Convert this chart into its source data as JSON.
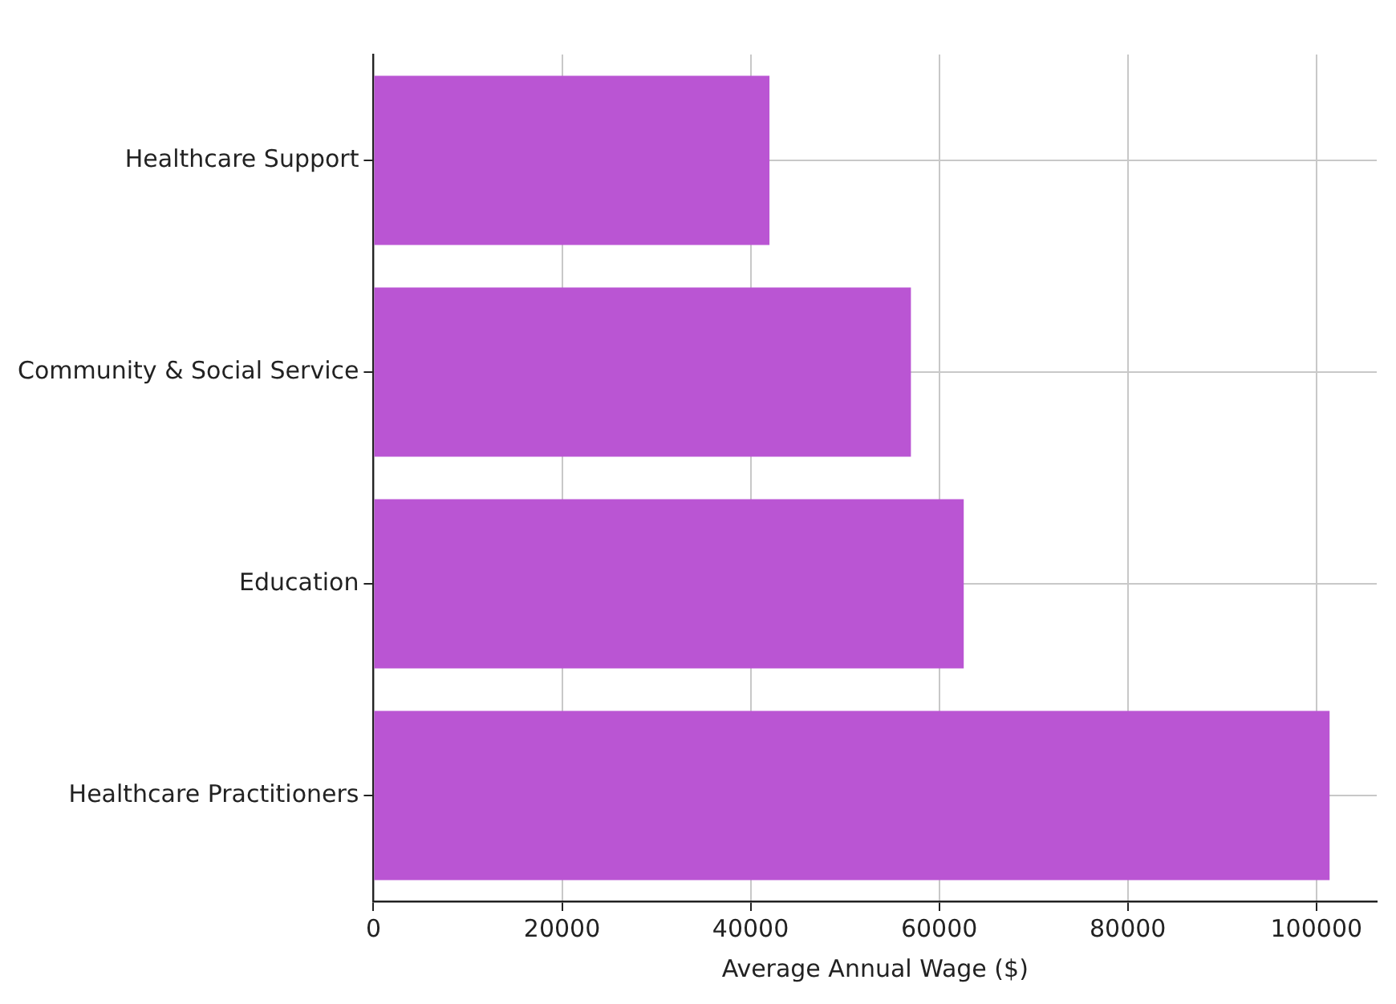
{
  "chart_data": {
    "type": "bar",
    "orientation": "horizontal",
    "categories": [
      "Healthcare Support",
      "Community & Social Service",
      "Education",
      "Healthcare Practitioners"
    ],
    "values": [
      42000,
      57000,
      62600,
      101400
    ],
    "color": "#ba55d3",
    "xlabel": "Average Annual Wage ($)",
    "xlim": [
      0,
      106400
    ],
    "xticks": [
      0,
      20000,
      40000,
      60000,
      80000,
      100000
    ],
    "grid": true
  }
}
